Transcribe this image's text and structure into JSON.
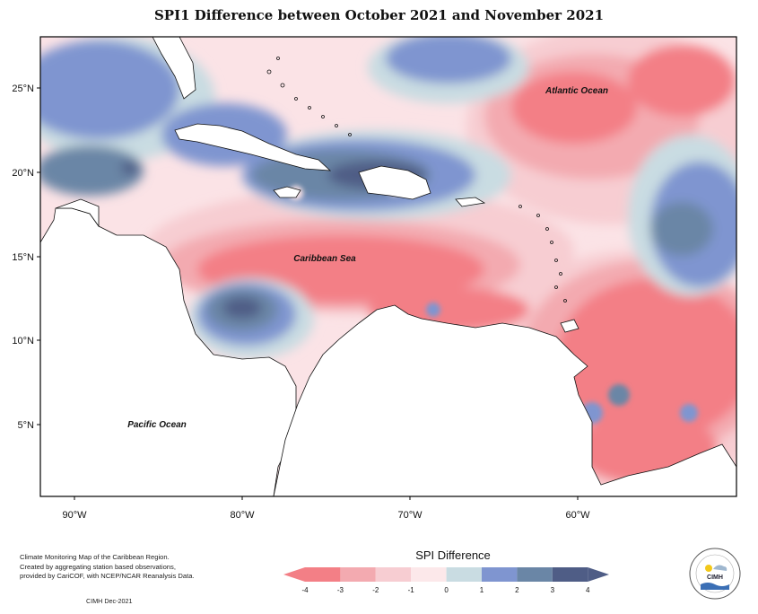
{
  "title": "SPI1 Difference between October 2021 and November 2021",
  "map": {
    "latitude_labels": [
      "25°N",
      "20°N",
      "15°N",
      "10°N",
      "5°N"
    ],
    "longitude_labels": [
      "90°W",
      "80°W",
      "70°W",
      "60°W"
    ],
    "places": {
      "atlantic": "Atlantic Ocean",
      "caribbean": "Caribbean Sea",
      "pacific": "Pacific Ocean"
    }
  },
  "legend": {
    "title": "SPI Difference",
    "tick_labels": [
      "-4",
      "-3",
      "-2",
      "-1",
      "0",
      "1",
      "2",
      "3",
      "4"
    ],
    "colors": [
      "#f37f86",
      "#f3aab0",
      "#f7cdd2",
      "#fce8ea",
      "#c9dce2",
      "#7f95d0",
      "#6a86a6",
      "#4f5d86"
    ]
  },
  "credit": {
    "lines": [
      "Climate Monitoring Map of the Caribbean Region.",
      "Created by aggregating station based observations,",
      "provided by CariCOF, with NCEP/NCAR Reanalysis Data."
    ],
    "date": "CIMH Dec-2021"
  },
  "logo": {
    "text": "CIMH"
  }
}
